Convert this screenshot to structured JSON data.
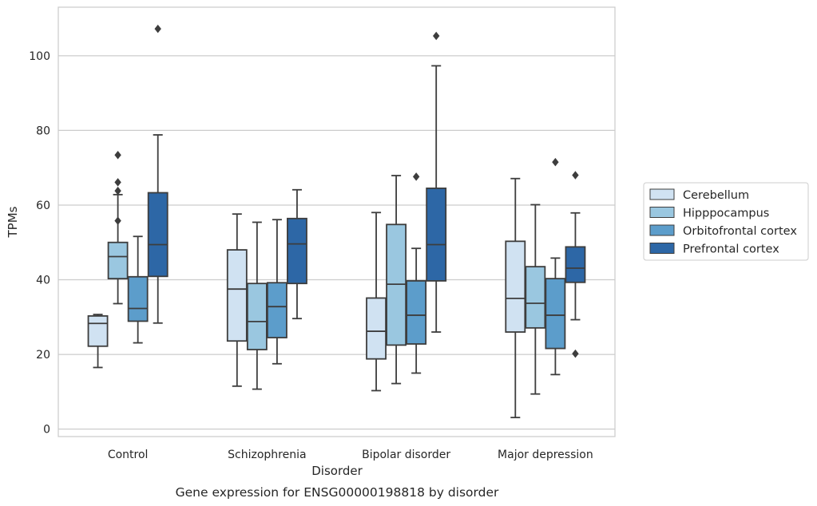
{
  "chart_data": {
    "type": "box",
    "title": "",
    "caption": "Gene expression for ENSG00000198818 by disorder",
    "xlabel": "Disorder",
    "ylabel": "TPMs",
    "ylim": [
      -2,
      113
    ],
    "yticks": [
      0,
      20,
      40,
      60,
      80,
      100
    ],
    "grid": "horizontal",
    "legend_position": "right",
    "categories": [
      "Control",
      "Schizophrenia",
      "Bipolar disorder",
      "Major depression"
    ],
    "series": [
      {
        "name": "Cerebellum",
        "color": "#d0e2f2",
        "boxes": [
          {
            "whislo": 16.5,
            "q1": 22.2,
            "med": 28.3,
            "q3": 30.3,
            "whishi": 30.7,
            "fliers": []
          },
          {
            "whislo": 11.5,
            "q1": 23.6,
            "med": 37.5,
            "q3": 48.0,
            "whishi": 57.6,
            "fliers": []
          },
          {
            "whislo": 10.3,
            "q1": 18.8,
            "med": 26.2,
            "q3": 35.1,
            "whishi": 58.0,
            "fliers": []
          },
          {
            "whislo": 3.1,
            "q1": 26.0,
            "med": 35.0,
            "q3": 50.3,
            "whishi": 67.1,
            "fliers": []
          }
        ]
      },
      {
        "name": "Hipppocampus",
        "color": "#9ac7e0",
        "boxes": [
          {
            "whislo": 33.6,
            "q1": 40.3,
            "med": 46.2,
            "q3": 50.0,
            "whishi": 62.8,
            "fliers": [
              73.4,
              66.1,
              63.8,
              55.8
            ]
          },
          {
            "whislo": 10.7,
            "q1": 21.3,
            "med": 28.8,
            "q3": 39.0,
            "whishi": 55.4,
            "fliers": []
          },
          {
            "whislo": 12.2,
            "q1": 22.5,
            "med": 38.8,
            "q3": 54.8,
            "whishi": 67.9,
            "fliers": []
          },
          {
            "whislo": 9.4,
            "q1": 27.1,
            "med": 33.7,
            "q3": 43.5,
            "whishi": 60.1,
            "fliers": []
          }
        ]
      },
      {
        "name": "Orbitofrontal cortex",
        "color": "#5c9dcb",
        "boxes": [
          {
            "whislo": 23.1,
            "q1": 28.9,
            "med": 32.3,
            "q3": 40.8,
            "whishi": 51.6,
            "fliers": []
          },
          {
            "whislo": 17.5,
            "q1": 24.5,
            "med": 32.8,
            "q3": 39.2,
            "whishi": 56.1,
            "fliers": []
          },
          {
            "whislo": 15.0,
            "q1": 22.8,
            "med": 30.5,
            "q3": 39.7,
            "whishi": 48.4,
            "fliers": [
              67.6
            ]
          },
          {
            "whislo": 14.6,
            "q1": 21.6,
            "med": 30.5,
            "q3": 40.3,
            "whishi": 45.8,
            "fliers": [
              71.5
            ]
          }
        ]
      },
      {
        "name": "Prefrontal cortex",
        "color": "#2d67a6",
        "boxes": [
          {
            "whislo": 28.4,
            "q1": 40.9,
            "med": 49.4,
            "q3": 63.3,
            "whishi": 78.8,
            "fliers": [
              107.2
            ]
          },
          {
            "whislo": 29.6,
            "q1": 39.0,
            "med": 49.6,
            "q3": 56.4,
            "whishi": 64.1,
            "fliers": []
          },
          {
            "whislo": 26.0,
            "q1": 39.7,
            "med": 49.4,
            "q3": 64.5,
            "whishi": 97.3,
            "fliers": [
              105.3
            ]
          },
          {
            "whislo": 29.3,
            "q1": 39.3,
            "med": 43.1,
            "q3": 48.8,
            "whishi": 57.9,
            "fliers": [
              68.0,
              20.2
            ]
          }
        ]
      }
    ]
  }
}
